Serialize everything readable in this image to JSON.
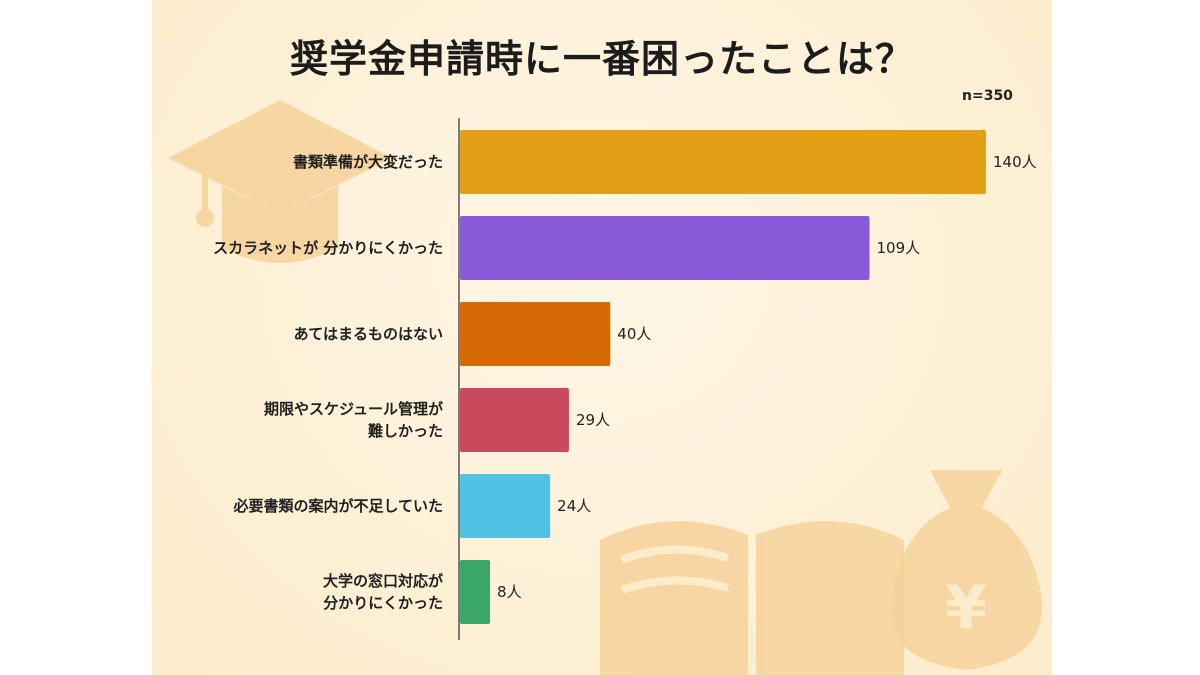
{
  "title": "奨学金申請時に一番困ったことは？",
  "sample_size": "n=350",
  "colors": {
    "background": "#fdeccb",
    "deco": "#f6d29a"
  },
  "chart_data": {
    "type": "bar",
    "orientation": "horizontal",
    "title": "奨学金申請時に一番困ったことは？",
    "xlim": [
      0,
      140
    ],
    "grid": false,
    "categories": [
      [
        "書類準備が大変だった"
      ],
      [
        "スカラネットが 分かりにくかった"
      ],
      [
        "あてはまるものはない"
      ],
      [
        "期限やスケジュール管理が",
        "難しかった"
      ],
      [
        "必要書類の案内が不足していた"
      ],
      [
        "大学の窓口対応が",
        "分かりにくかった"
      ]
    ],
    "values": [
      140,
      109,
      40,
      29,
      24,
      8
    ],
    "value_labels": [
      "140人",
      "109人",
      "40人",
      "29人",
      "24人",
      "8人"
    ],
    "bar_colors": [
      "#e3a016",
      "#895ad9",
      "#d56a05",
      "#c94a5d",
      "#4fc3e3",
      "#3aa769"
    ]
  }
}
